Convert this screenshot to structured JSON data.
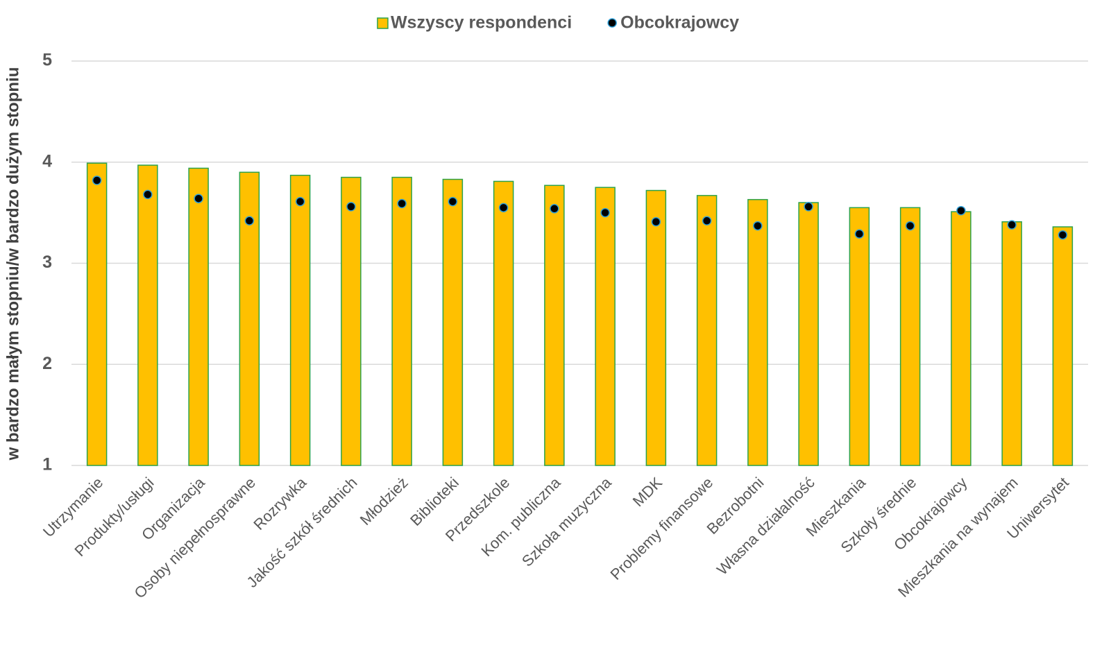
{
  "chart_data": {
    "type": "bar",
    "y_axis_label": "w bardzo małym stopniu/w bardzo dużym stopniu",
    "categories": [
      "Utrzymanie",
      "Produkty/usługi",
      "Organizacja",
      "Osoby niepełnosprawne",
      "Rozrywka",
      "Jakość szkół średnich",
      "Młodzież",
      "Biblioteki",
      "Przedszkole",
      "Kom. publiczna",
      "Szkoła muzyczna",
      "MDK",
      "Problemy finansowe",
      "Bezrobotni",
      "Własna działalność",
      "Mieszkania",
      "Szkoły średnie",
      "Obcokrajowcy",
      "Mieszkania na wynajem",
      "Uniwersytet"
    ],
    "series": [
      {
        "name": "Wszyscy respondenci",
        "type": "bar",
        "color": "#ffc000",
        "edge_color": "#2ca24a",
        "values": [
          3.99,
          3.97,
          3.94,
          3.9,
          3.87,
          3.85,
          3.85,
          3.83,
          3.81,
          3.77,
          3.75,
          3.72,
          3.67,
          3.63,
          3.6,
          3.55,
          3.55,
          3.51,
          3.41,
          3.36
        ]
      },
      {
        "name": "Obcokrajowcy",
        "type": "scatter",
        "color": "#000000",
        "edge_color": "#2e9fd8",
        "values": [
          3.82,
          3.68,
          3.64,
          3.42,
          3.61,
          3.56,
          3.59,
          3.61,
          3.55,
          3.54,
          3.5,
          3.41,
          3.42,
          3.37,
          3.56,
          3.29,
          3.37,
          3.52,
          3.38,
          3.28
        ]
      }
    ],
    "ylim": [
      1,
      5
    ],
    "yticks": [
      1,
      2,
      3,
      4,
      5
    ],
    "grid": true,
    "legend": "top"
  }
}
